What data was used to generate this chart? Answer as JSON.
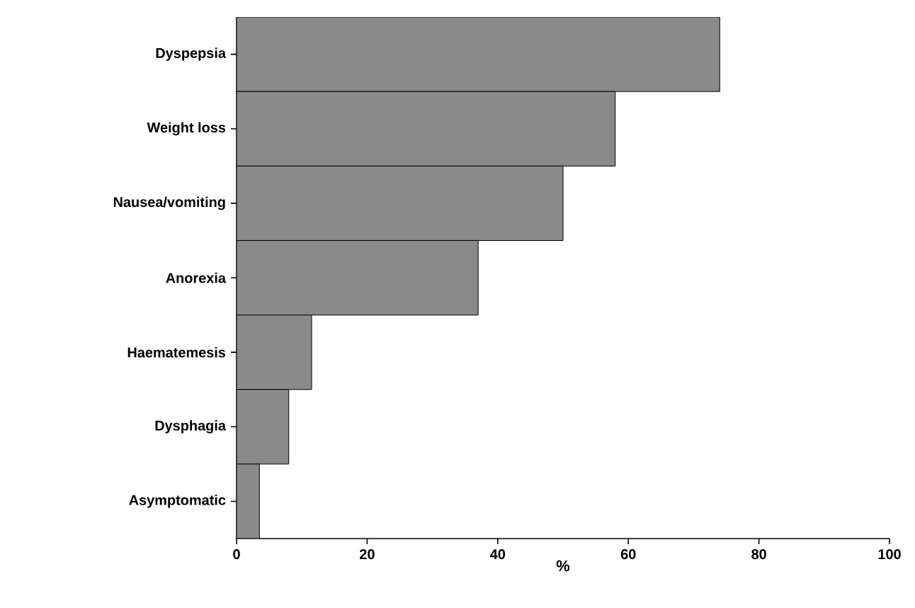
{
  "chart_data": {
    "type": "bar",
    "orientation": "horizontal",
    "xlabel": "%",
    "categories": [
      "Dyspepsia",
      "Weight loss",
      "Nausea/vomiting",
      "Anorexia",
      "Haematemesis",
      "Dysphagia",
      "Asymptomatic"
    ],
    "values": [
      74,
      58,
      50,
      37,
      11.5,
      8,
      3.5
    ],
    "color": "#8a8a8a",
    "xlim": [
      0,
      100
    ],
    "xticks": [
      0,
      20,
      40,
      60,
      80,
      100
    ],
    "grid": false
  }
}
